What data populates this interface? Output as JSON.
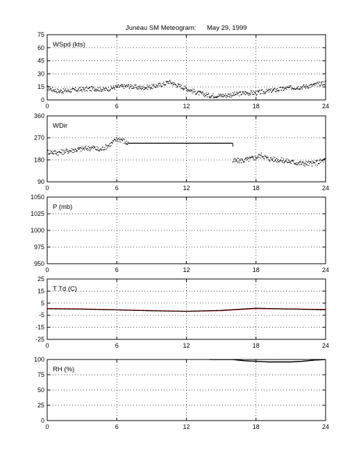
{
  "figure": {
    "title_station": "Juneau SM Meteogram:",
    "title_date": "May 29, 1999"
  },
  "chart_data": [
    {
      "type": "scatter",
      "label": "WSpd (kts)",
      "x_ticks": [
        0,
        6,
        12,
        18,
        24
      ],
      "xlim": [
        0,
        24
      ],
      "ylim": [
        0,
        75
      ],
      "y_ticks": [
        0,
        15,
        30,
        45,
        60,
        75
      ],
      "grid": true,
      "series": [
        {
          "color": "#000000",
          "points": [
            [
              0,
              14
            ],
            [
              1,
              10
            ],
            [
              2,
              11
            ],
            [
              3,
              12
            ],
            [
              4,
              13
            ],
            [
              5,
              12
            ],
            [
              6,
              15
            ],
            [
              7,
              16
            ],
            [
              8,
              14
            ],
            [
              9,
              15
            ],
            [
              10,
              18
            ],
            [
              10.5,
              21
            ],
            [
              11,
              18
            ],
            [
              12,
              13
            ],
            [
              13,
              8
            ],
            [
              14,
              5
            ],
            [
              15,
              5
            ],
            [
              16,
              6
            ],
            [
              17,
              8
            ],
            [
              18,
              8
            ],
            [
              19,
              10
            ],
            [
              20,
              12
            ],
            [
              21,
              14
            ],
            [
              22,
              15
            ],
            [
              23,
              17
            ],
            [
              24,
              20
            ]
          ]
        }
      ]
    },
    {
      "type": "scatter",
      "label": "WDir",
      "x_ticks": [
        0,
        6,
        12,
        18,
        24
      ],
      "xlim": [
        0,
        24
      ],
      "ylim": [
        90,
        360
      ],
      "y_ticks": [
        90,
        180,
        270,
        360
      ],
      "grid": true,
      "series": [
        {
          "color": "#000000",
          "points": [
            [
              0,
              213
            ],
            [
              1,
              210
            ],
            [
              2,
              218
            ],
            [
              3,
              225
            ],
            [
              4,
              230
            ],
            [
              4.5,
              220
            ],
            [
              5,
              232
            ],
            [
              5.5,
              245
            ],
            [
              6,
              265
            ],
            [
              6.5,
              262
            ],
            [
              6.8,
              250
            ],
            [
              7,
              248
            ],
            [
              16,
              248
            ],
            [
              16,
              175
            ],
            [
              17,
              178
            ],
            [
              18,
              190
            ],
            [
              18.5,
              200
            ],
            [
              19,
              185
            ],
            [
              20,
              180
            ],
            [
              21,
              172
            ],
            [
              22,
              165
            ],
            [
              23,
              165
            ],
            [
              24,
              180
            ]
          ]
        }
      ]
    },
    {
      "type": "scatter",
      "label": "P (mb)",
      "x_ticks": [
        0,
        6,
        12,
        18,
        24
      ],
      "xlim": [
        0,
        24
      ],
      "ylim": [
        950,
        1050
      ],
      "y_ticks": [
        950,
        975,
        1000,
        1025,
        1050
      ],
      "grid": true,
      "series": []
    },
    {
      "type": "line",
      "label": "T Td (C)",
      "x_ticks": [
        0,
        6,
        12,
        18,
        24
      ],
      "xlim": [
        0,
        24
      ],
      "ylim": [
        -25,
        25
      ],
      "y_ticks": [
        -25,
        -15,
        -5,
        5,
        15,
        25
      ],
      "grid": true,
      "series": [
        {
          "color": "#ff0000",
          "points": [
            [
              0,
              0.5
            ],
            [
              3,
              0.2
            ],
            [
              6,
              -0.5
            ],
            [
              9,
              -1.2
            ],
            [
              12,
              -1.8
            ],
            [
              15,
              -1.2
            ],
            [
              18,
              0.5
            ],
            [
              21,
              0.2
            ],
            [
              24,
              -0.3
            ]
          ]
        },
        {
          "color": "#000000",
          "points": [
            [
              0,
              0.3
            ],
            [
              3,
              0
            ],
            [
              6,
              -0.6
            ],
            [
              9,
              -1.3
            ],
            [
              12,
              -1.8
            ],
            [
              15,
              -1.0
            ],
            [
              18,
              0.8
            ],
            [
              21,
              0.1
            ],
            [
              24,
              -0.5
            ]
          ]
        }
      ]
    },
    {
      "type": "line",
      "label": "RH (%)",
      "x_ticks": [
        0,
        6,
        12,
        18,
        24
      ],
      "xlim": [
        0,
        24
      ],
      "ylim": [
        0,
        100
      ],
      "y_ticks": [
        0,
        25,
        50,
        75,
        100
      ],
      "grid": true,
      "series": [
        {
          "color": "#000000",
          "points": [
            [
              14,
              100
            ],
            [
              16,
              100
            ],
            [
              17,
              98
            ],
            [
              18,
              97
            ],
            [
              19,
              96
            ],
            [
              20,
              96
            ],
            [
              21,
              96
            ],
            [
              22,
              97
            ],
            [
              23,
              99
            ],
            [
              24,
              100
            ]
          ]
        }
      ]
    }
  ]
}
